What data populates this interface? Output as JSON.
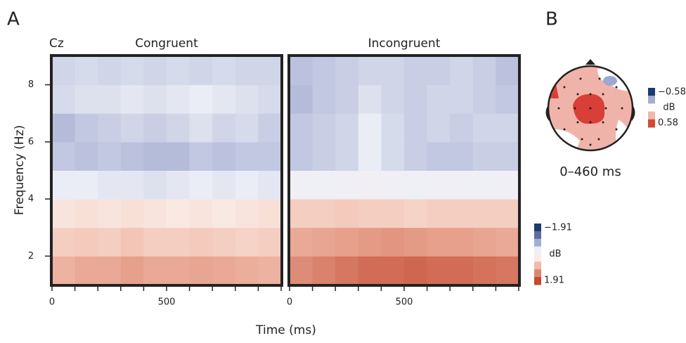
{
  "chart_data": [
    {
      "type": "heatmap",
      "panel_label": "A",
      "channel": "Cz",
      "xlabel": "Time (ms)",
      "ylabel": "Frequency (Hz)",
      "x_edges": [
        0,
        100,
        200,
        300,
        400,
        500,
        600,
        700,
        800,
        900,
        1000
      ],
      "y_edges": [
        1,
        2,
        3,
        4,
        5,
        6,
        7,
        8,
        9
      ],
      "xlim": [
        0,
        1000
      ],
      "ylim": [
        1,
        9
      ],
      "xticks": [
        0,
        500
      ],
      "xminor": [
        100,
        200,
        300,
        400,
        600,
        700,
        800,
        900,
        1000
      ],
      "yticks": [
        2,
        4,
        6,
        8
      ],
      "panels": [
        {
          "title": "Congruent",
          "z": [
            [
              0.9,
              1.0,
              1.0,
              1.1,
              1.0,
              1.0,
              1.05,
              1.0,
              0.95,
              0.9
            ],
            [
              0.6,
              0.65,
              0.6,
              0.7,
              0.6,
              0.6,
              0.65,
              0.6,
              0.55,
              0.6
            ],
            [
              0.35,
              0.4,
              0.35,
              0.4,
              0.35,
              0.3,
              0.35,
              0.3,
              0.35,
              0.4
            ],
            [
              -0.3,
              -0.3,
              -0.35,
              -0.35,
              -0.4,
              -0.35,
              -0.3,
              -0.35,
              -0.3,
              -0.35
            ],
            [
              -0.6,
              -0.65,
              -0.6,
              -0.65,
              -0.7,
              -0.7,
              -0.6,
              -0.65,
              -0.6,
              -0.6
            ],
            [
              -0.7,
              -0.6,
              -0.55,
              -0.5,
              -0.55,
              -0.5,
              -0.4,
              -0.5,
              -0.45,
              -0.55
            ],
            [
              -0.45,
              -0.4,
              -0.4,
              -0.35,
              -0.4,
              -0.35,
              -0.3,
              -0.35,
              -0.4,
              -0.45
            ],
            [
              -0.5,
              -0.45,
              -0.5,
              -0.45,
              -0.5,
              -0.45,
              -0.5,
              -0.45,
              -0.5,
              -0.5
            ]
          ]
        },
        {
          "title": "Incongruent",
          "z": [
            [
              1.3,
              1.4,
              1.5,
              1.6,
              1.6,
              1.65,
              1.6,
              1.6,
              1.55,
              1.5
            ],
            [
              1.0,
              1.05,
              1.1,
              1.15,
              1.2,
              1.15,
              1.1,
              1.1,
              1.05,
              1.0
            ],
            [
              0.6,
              0.6,
              0.65,
              0.6,
              0.6,
              0.55,
              0.6,
              0.6,
              0.6,
              0.6
            ],
            [
              -0.2,
              -0.25,
              -0.2,
              -0.15,
              -0.2,
              -0.25,
              -0.2,
              -0.2,
              -0.25,
              -0.2
            ],
            [
              -0.6,
              -0.55,
              -0.5,
              -0.3,
              -0.45,
              -0.55,
              -0.6,
              -0.6,
              -0.55,
              -0.55
            ],
            [
              -0.6,
              -0.55,
              -0.5,
              -0.3,
              -0.45,
              -0.55,
              -0.5,
              -0.55,
              -0.5,
              -0.5
            ],
            [
              -0.7,
              -0.6,
              -0.55,
              -0.4,
              -0.5,
              -0.55,
              -0.5,
              -0.5,
              -0.55,
              -0.6
            ],
            [
              -0.65,
              -0.6,
              -0.55,
              -0.5,
              -0.5,
              -0.55,
              -0.55,
              -0.5,
              -0.55,
              -0.65
            ]
          ]
        }
      ],
      "clim": [
        -1.91,
        1.91
      ],
      "colorscale": [
        "#1b3a6f",
        "#5a6ea5",
        "#a5aed2",
        "#eef0f7",
        "#fbebe5",
        "#f0bba9",
        "#dc8670",
        "#c44a33"
      ],
      "colorbar_label": "dB",
      "colorbar_ticks": [
        {
          "value": -1.91,
          "label": "−1.91"
        },
        1.91
      ]
    },
    {
      "type": "topomap",
      "panel_label": "B",
      "title": "0–460 ms",
      "clim": [
        -0.58,
        0.58
      ],
      "colorscale": [
        "#1b3a6f",
        "#a5aed2",
        "#ffffff",
        "#f2b7ac",
        "#cf4b36"
      ],
      "colorbar_label": "dB",
      "colorbar_ticks": [
        {
          "value": -0.58,
          "label": "−0.58"
        },
        0.58
      ]
    }
  ]
}
